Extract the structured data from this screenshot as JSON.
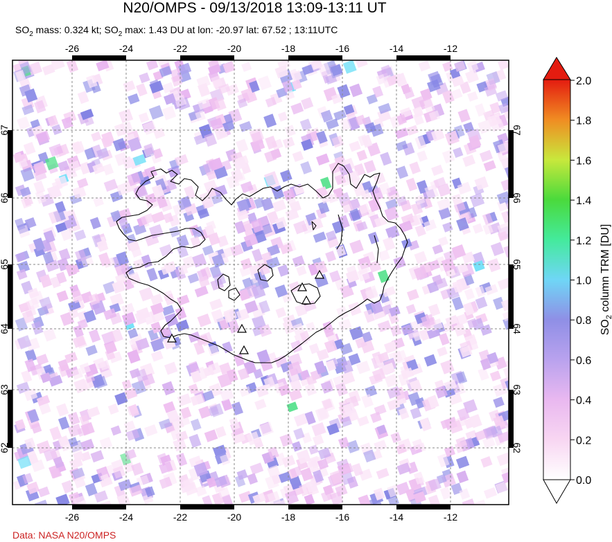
{
  "header": {
    "title": "N20/OMPS - 09/13/2018 13:09-13:11 UT",
    "stats_prefix": "SO",
    "stats_sub": "2",
    "stats_mid": " mass: 0.324 kt; SO",
    "stats_sub2": "2",
    "stats_suffix": " max: 1.43 DU at lon: -20.97 lat: 67.52 ; 13:11UTC"
  },
  "map": {
    "lon_ticks": [
      "-26",
      "-24",
      "-22",
      "-20",
      "-18",
      "-16",
      "-14",
      "-12"
    ],
    "lat_ticks": [
      "67",
      "66",
      "65",
      "64",
      "63",
      "62"
    ],
    "grid": true,
    "volcano_marker": "triangle-icon"
  },
  "colorbar": {
    "label_main": "SO",
    "label_sub": "2",
    "label_rest": " column TRM [DU]",
    "ticks": [
      "2.0",
      "1.8",
      "1.6",
      "1.4",
      "1.2",
      "1.0",
      "0.8",
      "0.6",
      "0.4",
      "0.2",
      "0.0"
    ],
    "colors": [
      "#ffffff",
      "#f4c8f0",
      "#c8a8f0",
      "#9090e8",
      "#70d8f8",
      "#40e890",
      "#40d840",
      "#c0e840",
      "#f0e020",
      "#f09020",
      "#e02010"
    ]
  },
  "credit": "Data: NASA N20/OMPS"
}
